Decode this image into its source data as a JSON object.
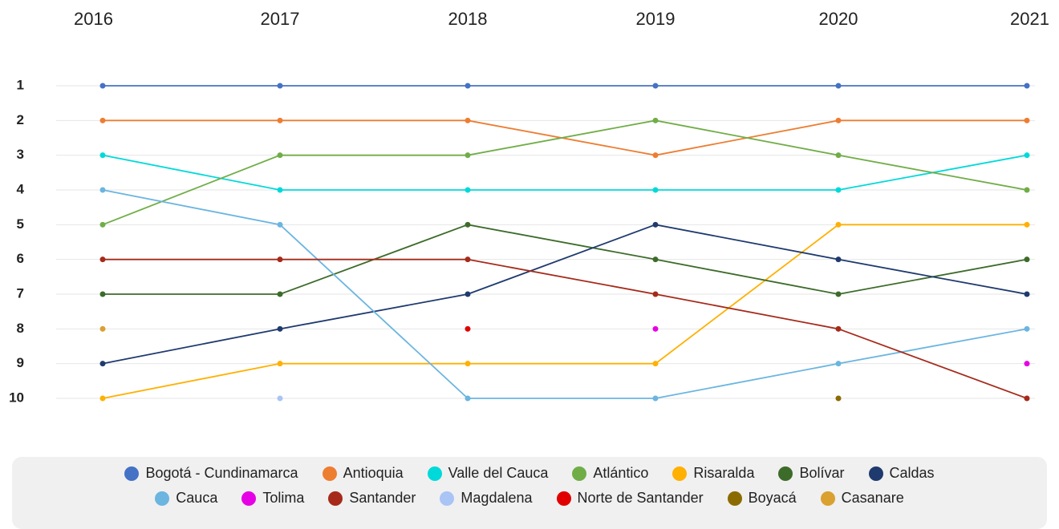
{
  "chart_data": {
    "type": "bump",
    "categories": [
      "2016",
      "2017",
      "2018",
      "2019",
      "2020",
      "2021"
    ],
    "ylim": [
      1,
      10
    ],
    "yticks": [
      1,
      2,
      3,
      4,
      5,
      6,
      7,
      8,
      9,
      10
    ],
    "grid": true,
    "legend": "bottom",
    "series": [
      {
        "name": "Bogotá - Cundinamarca",
        "color": "#4472c4",
        "values": [
          1,
          1,
          1,
          1,
          1,
          1
        ]
      },
      {
        "name": "Antioquia",
        "color": "#ed7d31",
        "values": [
          2,
          2,
          2,
          3,
          2,
          2
        ]
      },
      {
        "name": "Valle del Cauca",
        "color": "#00d9d9",
        "values": [
          3,
          4,
          4,
          4,
          4,
          3
        ]
      },
      {
        "name": "Atlántico",
        "color": "#70ad47",
        "values": [
          5,
          3,
          3,
          2,
          3,
          4
        ]
      },
      {
        "name": "Risaralda",
        "color": "#ffb000",
        "values": [
          10,
          9,
          9,
          9,
          5,
          5
        ]
      },
      {
        "name": "Bolívar",
        "color": "#3d6b2a",
        "values": [
          7,
          7,
          5,
          6,
          7,
          6
        ]
      },
      {
        "name": "Caldas",
        "color": "#1f3a6e",
        "values": [
          9,
          8,
          7,
          5,
          6,
          7
        ]
      },
      {
        "name": "Cauca",
        "color": "#6bb5e0",
        "values": [
          4,
          5,
          10,
          10,
          9,
          8
        ]
      },
      {
        "name": "Tolima",
        "color": "#e600e6",
        "values": [
          null,
          null,
          null,
          8,
          null,
          9
        ]
      },
      {
        "name": "Santander",
        "color": "#a52a1a",
        "values": [
          6,
          6,
          6,
          7,
          8,
          10
        ]
      },
      {
        "name": "Magdalena",
        "color": "#a9c4f5",
        "values": [
          null,
          10,
          null,
          null,
          null,
          null
        ]
      },
      {
        "name": "Norte de Santander",
        "color": "#e00000",
        "values": [
          null,
          null,
          8,
          null,
          null,
          null
        ]
      },
      {
        "name": "Boyacá",
        "color": "#8b6b00",
        "values": [
          null,
          null,
          null,
          null,
          10,
          null
        ]
      },
      {
        "name": "Casanare",
        "color": "#daa030",
        "values": [
          8,
          null,
          null,
          null,
          null,
          null
        ]
      }
    ]
  }
}
